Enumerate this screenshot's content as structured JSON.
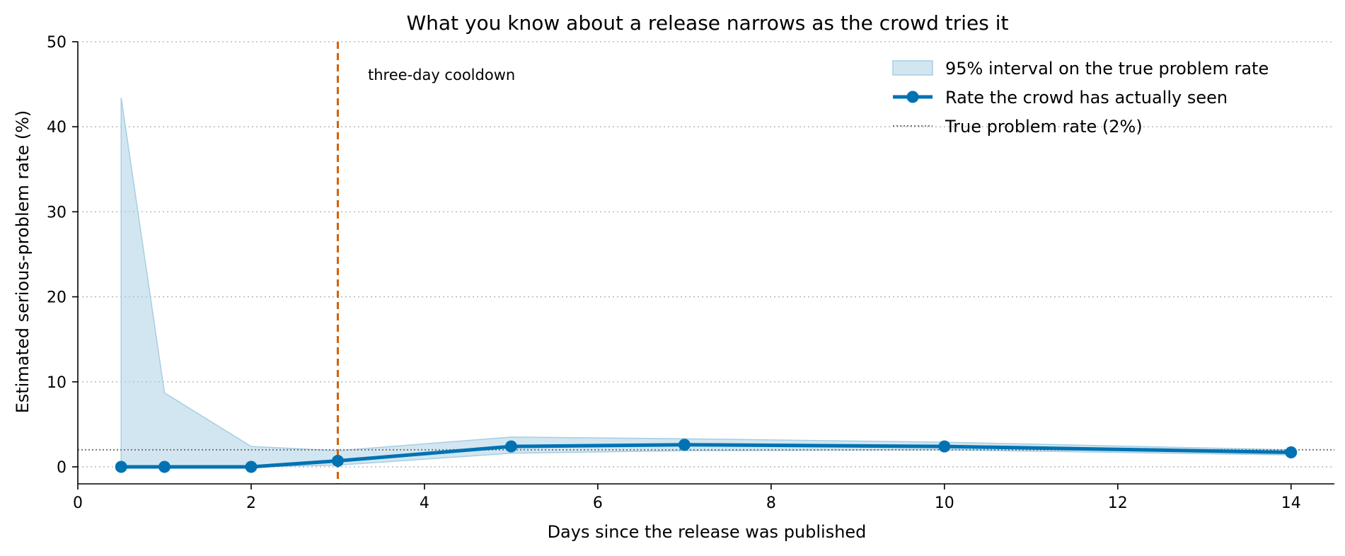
{
  "chart_data": {
    "type": "line",
    "title": "What you know about a release narrows as the crowd tries it",
    "xlabel": "Days since the release was published",
    "ylabel": "Estimated serious-problem rate (%)",
    "xlim": [
      0,
      14.5
    ],
    "ylim": [
      -2,
      50
    ],
    "xticks": [
      0,
      2,
      4,
      6,
      8,
      10,
      12,
      14
    ],
    "xtick_labels": [
      "0",
      "2",
      "4",
      "6",
      "8",
      "10",
      "12",
      "14"
    ],
    "yticks": [
      0,
      10,
      20,
      30,
      40,
      50
    ],
    "ytick_labels": [
      "0",
      "10",
      "20",
      "30",
      "40",
      "50"
    ],
    "grid": "horizontal dotted",
    "legend_position": "top-right",
    "series": [
      {
        "name": "Rate the crowd has actually seen",
        "kind": "line-markers",
        "color": "#0072b2",
        "x": [
          0.5,
          1,
          2,
          3,
          5,
          7,
          10,
          14
        ],
        "y": [
          0,
          0,
          0,
          0.7,
          2.4,
          2.6,
          2.4,
          1.7
        ]
      },
      {
        "name": "95% interval on the true problem rate",
        "kind": "band",
        "color": "#a6cee3",
        "x": [
          0.5,
          1,
          2,
          3,
          5,
          7,
          10,
          14
        ],
        "lower": [
          0,
          0,
          0,
          0.2,
          1.6,
          1.9,
          2.0,
          1.4
        ],
        "upper": [
          43.4,
          8.7,
          2.4,
          1.9,
          3.5,
          3.3,
          2.9,
          2.0
        ]
      },
      {
        "name": "True problem rate (2%)",
        "kind": "hline",
        "color": "#777777",
        "y": 2
      }
    ],
    "annotations": [
      {
        "text": "three-day cooldown",
        "x": 3,
        "color": "#d55e00",
        "kind": "vline"
      }
    ]
  }
}
